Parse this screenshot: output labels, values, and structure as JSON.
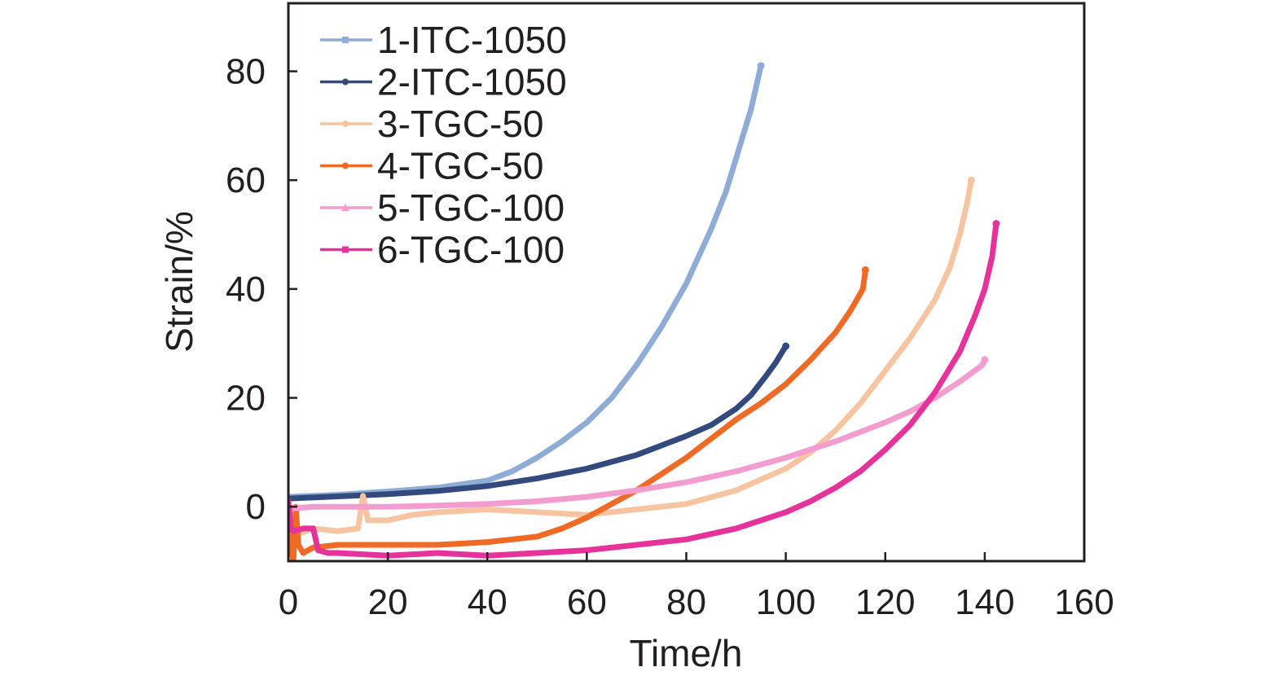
{
  "chart_data": {
    "type": "line",
    "title": "",
    "xlabel": "Time/h",
    "ylabel": "Strain/%",
    "xlim": [
      0,
      160
    ],
    "ylim": [
      -10,
      92.5
    ],
    "xticks": [
      0,
      20,
      40,
      60,
      80,
      100,
      120,
      140,
      160
    ],
    "yticks": [
      0,
      20,
      40,
      60,
      80
    ],
    "xtick_labels": [
      "0",
      "20",
      "40",
      "60",
      "80",
      "100",
      "120",
      "140",
      "160"
    ],
    "ytick_labels": [
      "0",
      "20",
      "40",
      "60",
      "80"
    ],
    "grid": false,
    "legend_position": "top-left",
    "series": [
      {
        "name": "1-ITC-1050",
        "color": "#8facd6",
        "marker": "square",
        "x": [
          0,
          10,
          20,
          30,
          40,
          45,
          50,
          55,
          60,
          65,
          70,
          75,
          80,
          85,
          88,
          91,
          93,
          95
        ],
        "y": [
          1.8,
          2.2,
          2.8,
          3.5,
          4.8,
          6.5,
          9,
          12,
          15.5,
          20,
          26,
          33,
          41,
          51,
          58,
          67,
          73,
          81
        ]
      },
      {
        "name": "2-ITC-1050",
        "color": "#334a7e",
        "marker": "circle",
        "x": [
          0,
          10,
          20,
          30,
          40,
          50,
          60,
          70,
          80,
          85,
          90,
          93,
          96,
          98,
          100
        ],
        "y": [
          1.5,
          1.9,
          2.3,
          2.9,
          3.8,
          5.2,
          7,
          9.5,
          13,
          15,
          18,
          20.5,
          24,
          26.5,
          29.5
        ]
      },
      {
        "name": "3-TGC-50",
        "color": "#f6c4a0",
        "marker": "circle",
        "x": [
          0,
          1,
          2,
          5,
          10,
          14,
          15,
          16,
          20,
          25,
          30,
          40,
          50,
          60,
          70,
          80,
          90,
          100,
          105,
          110,
          115,
          120,
          125,
          130,
          133,
          135,
          136.5,
          137.3
        ],
        "y": [
          0,
          -4,
          -5,
          -4,
          -4.5,
          -4,
          2,
          -2.5,
          -2.5,
          -1.5,
          -1,
          -0.5,
          -1,
          -1.5,
          -0.5,
          0.5,
          3,
          7,
          10,
          14,
          19,
          25,
          31,
          38,
          44,
          50,
          56,
          60
        ]
      },
      {
        "name": "4-TGC-50",
        "color": "#ee6a25",
        "marker": "circle",
        "x": [
          0,
          1,
          1.5,
          2,
          3,
          5,
          10,
          20,
          30,
          40,
          45,
          50,
          55,
          60,
          65,
          70,
          75,
          80,
          85,
          90,
          95,
          100,
          105,
          110,
          113,
          115.5,
          115.8,
          116
        ],
        "y": [
          -4,
          -10,
          0,
          -7,
          -8.5,
          -7.5,
          -7,
          -7,
          -7,
          -6.5,
          -6,
          -5.5,
          -4,
          -2,
          0.5,
          3,
          6,
          9,
          12.5,
          16,
          19,
          22.5,
          27,
          32,
          36,
          40,
          42,
          43.5
        ]
      },
      {
        "name": "5-TGC-100",
        "color": "#f29ccf",
        "marker": "triangle",
        "x": [
          0,
          1,
          5,
          10,
          20,
          30,
          40,
          50,
          60,
          70,
          80,
          90,
          100,
          110,
          120,
          125,
          130,
          135,
          138,
          139.5,
          140
        ],
        "y": [
          0,
          -0.3,
          0,
          0,
          0,
          0.2,
          0.5,
          1,
          1.8,
          3,
          4.5,
          6.5,
          9,
          12,
          15.5,
          17.5,
          20,
          23,
          25,
          26,
          27
        ]
      },
      {
        "name": "6-TGC-100",
        "color": "#e5339b",
        "marker": "square",
        "x": [
          0,
          0.5,
          1,
          3,
          5,
          6,
          8,
          10,
          20,
          30,
          40,
          50,
          60,
          70,
          75,
          80,
          90,
          100,
          105,
          110,
          115,
          120,
          125,
          130,
          135,
          138,
          140,
          141.5,
          142.3
        ],
        "y": [
          1,
          -4,
          -4.5,
          -4,
          -4,
          -8,
          -8.5,
          -8.5,
          -9,
          -8.5,
          -9,
          -8.5,
          -8,
          -7,
          -6.5,
          -6,
          -4,
          -1,
          1,
          3.5,
          6.5,
          10.5,
          15,
          21,
          28.5,
          35,
          40,
          46,
          52
        ]
      }
    ]
  }
}
